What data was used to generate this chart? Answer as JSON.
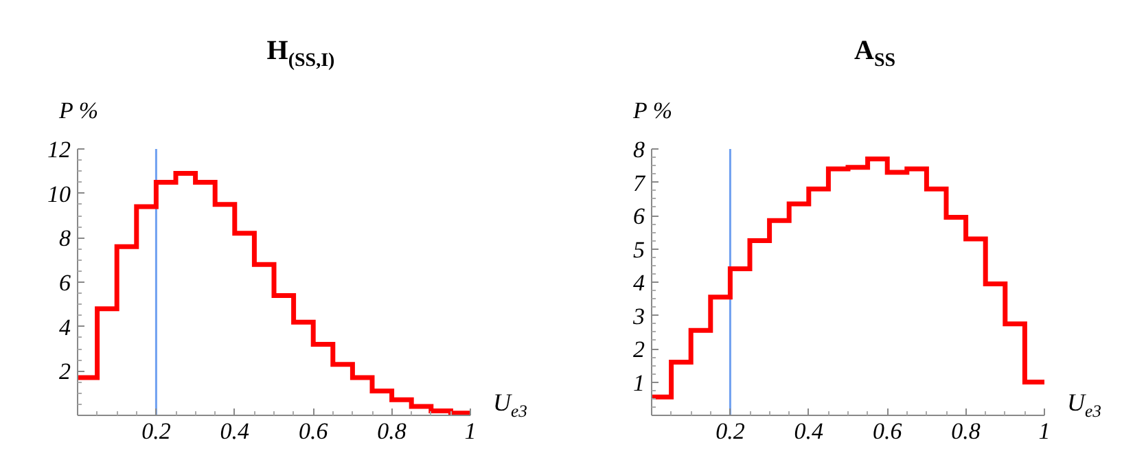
{
  "chart_data": [
    {
      "type": "histogram",
      "title": "H$_{(SS,I)}$",
      "xlabel": "U$_{e3}$",
      "ylabel": "P %",
      "color": "#ff0000",
      "bins": [
        0,
        0.05,
        0.1,
        0.15,
        0.2,
        0.25,
        0.3,
        0.35,
        0.4,
        0.45,
        0.5,
        0.55,
        0.6,
        0.65,
        0.7,
        0.75,
        0.8,
        0.85,
        0.9,
        0.95,
        1
      ],
      "values": [
        1.7,
        4.8,
        7.6,
        9.4,
        10.5,
        10.9,
        10.5,
        9.5,
        8.2,
        6.8,
        5.4,
        4.2,
        3.2,
        2.3,
        1.7,
        1.1,
        0.7,
        0.4,
        0.2,
        0.1
      ],
      "xlim": [
        0,
        1
      ],
      "xticks": [
        0.2,
        0.4,
        0.6,
        0.8,
        1
      ],
      "ylim": [
        0,
        12
      ],
      "yticks": [
        2,
        4,
        6,
        8,
        10,
        12
      ],
      "ref_lines": [
        {
          "axis": "x",
          "value": 0.2,
          "color": "#6fa0f0"
        }
      ]
    },
    {
      "type": "histogram",
      "title": "A$_{SS}$",
      "xlabel": "U$_{e3}$",
      "ylabel": "P %",
      "color": "#ff0000",
      "bins": [
        0,
        0.05,
        0.1,
        0.15,
        0.2,
        0.25,
        0.3,
        0.35,
        0.4,
        0.45,
        0.5,
        0.55,
        0.6,
        0.65,
        0.7,
        0.75,
        0.8,
        0.85,
        0.9,
        0.95,
        1
      ],
      "values": [
        0.55,
        1.6,
        2.55,
        3.55,
        4.4,
        5.25,
        5.85,
        6.35,
        6.8,
        7.4,
        7.45,
        7.7,
        7.3,
        7.4,
        6.8,
        5.95,
        5.3,
        3.95,
        2.75,
        1.0
      ],
      "xlim": [
        0,
        1
      ],
      "xticks": [
        0.2,
        0.4,
        0.6,
        0.8,
        1
      ],
      "ylim": [
        0,
        8
      ],
      "yticks": [
        1,
        2,
        3,
        4,
        5,
        6,
        7,
        8
      ],
      "ref_lines": [
        {
          "axis": "x",
          "value": 0.2,
          "color": "#6fa0f0"
        }
      ]
    }
  ]
}
